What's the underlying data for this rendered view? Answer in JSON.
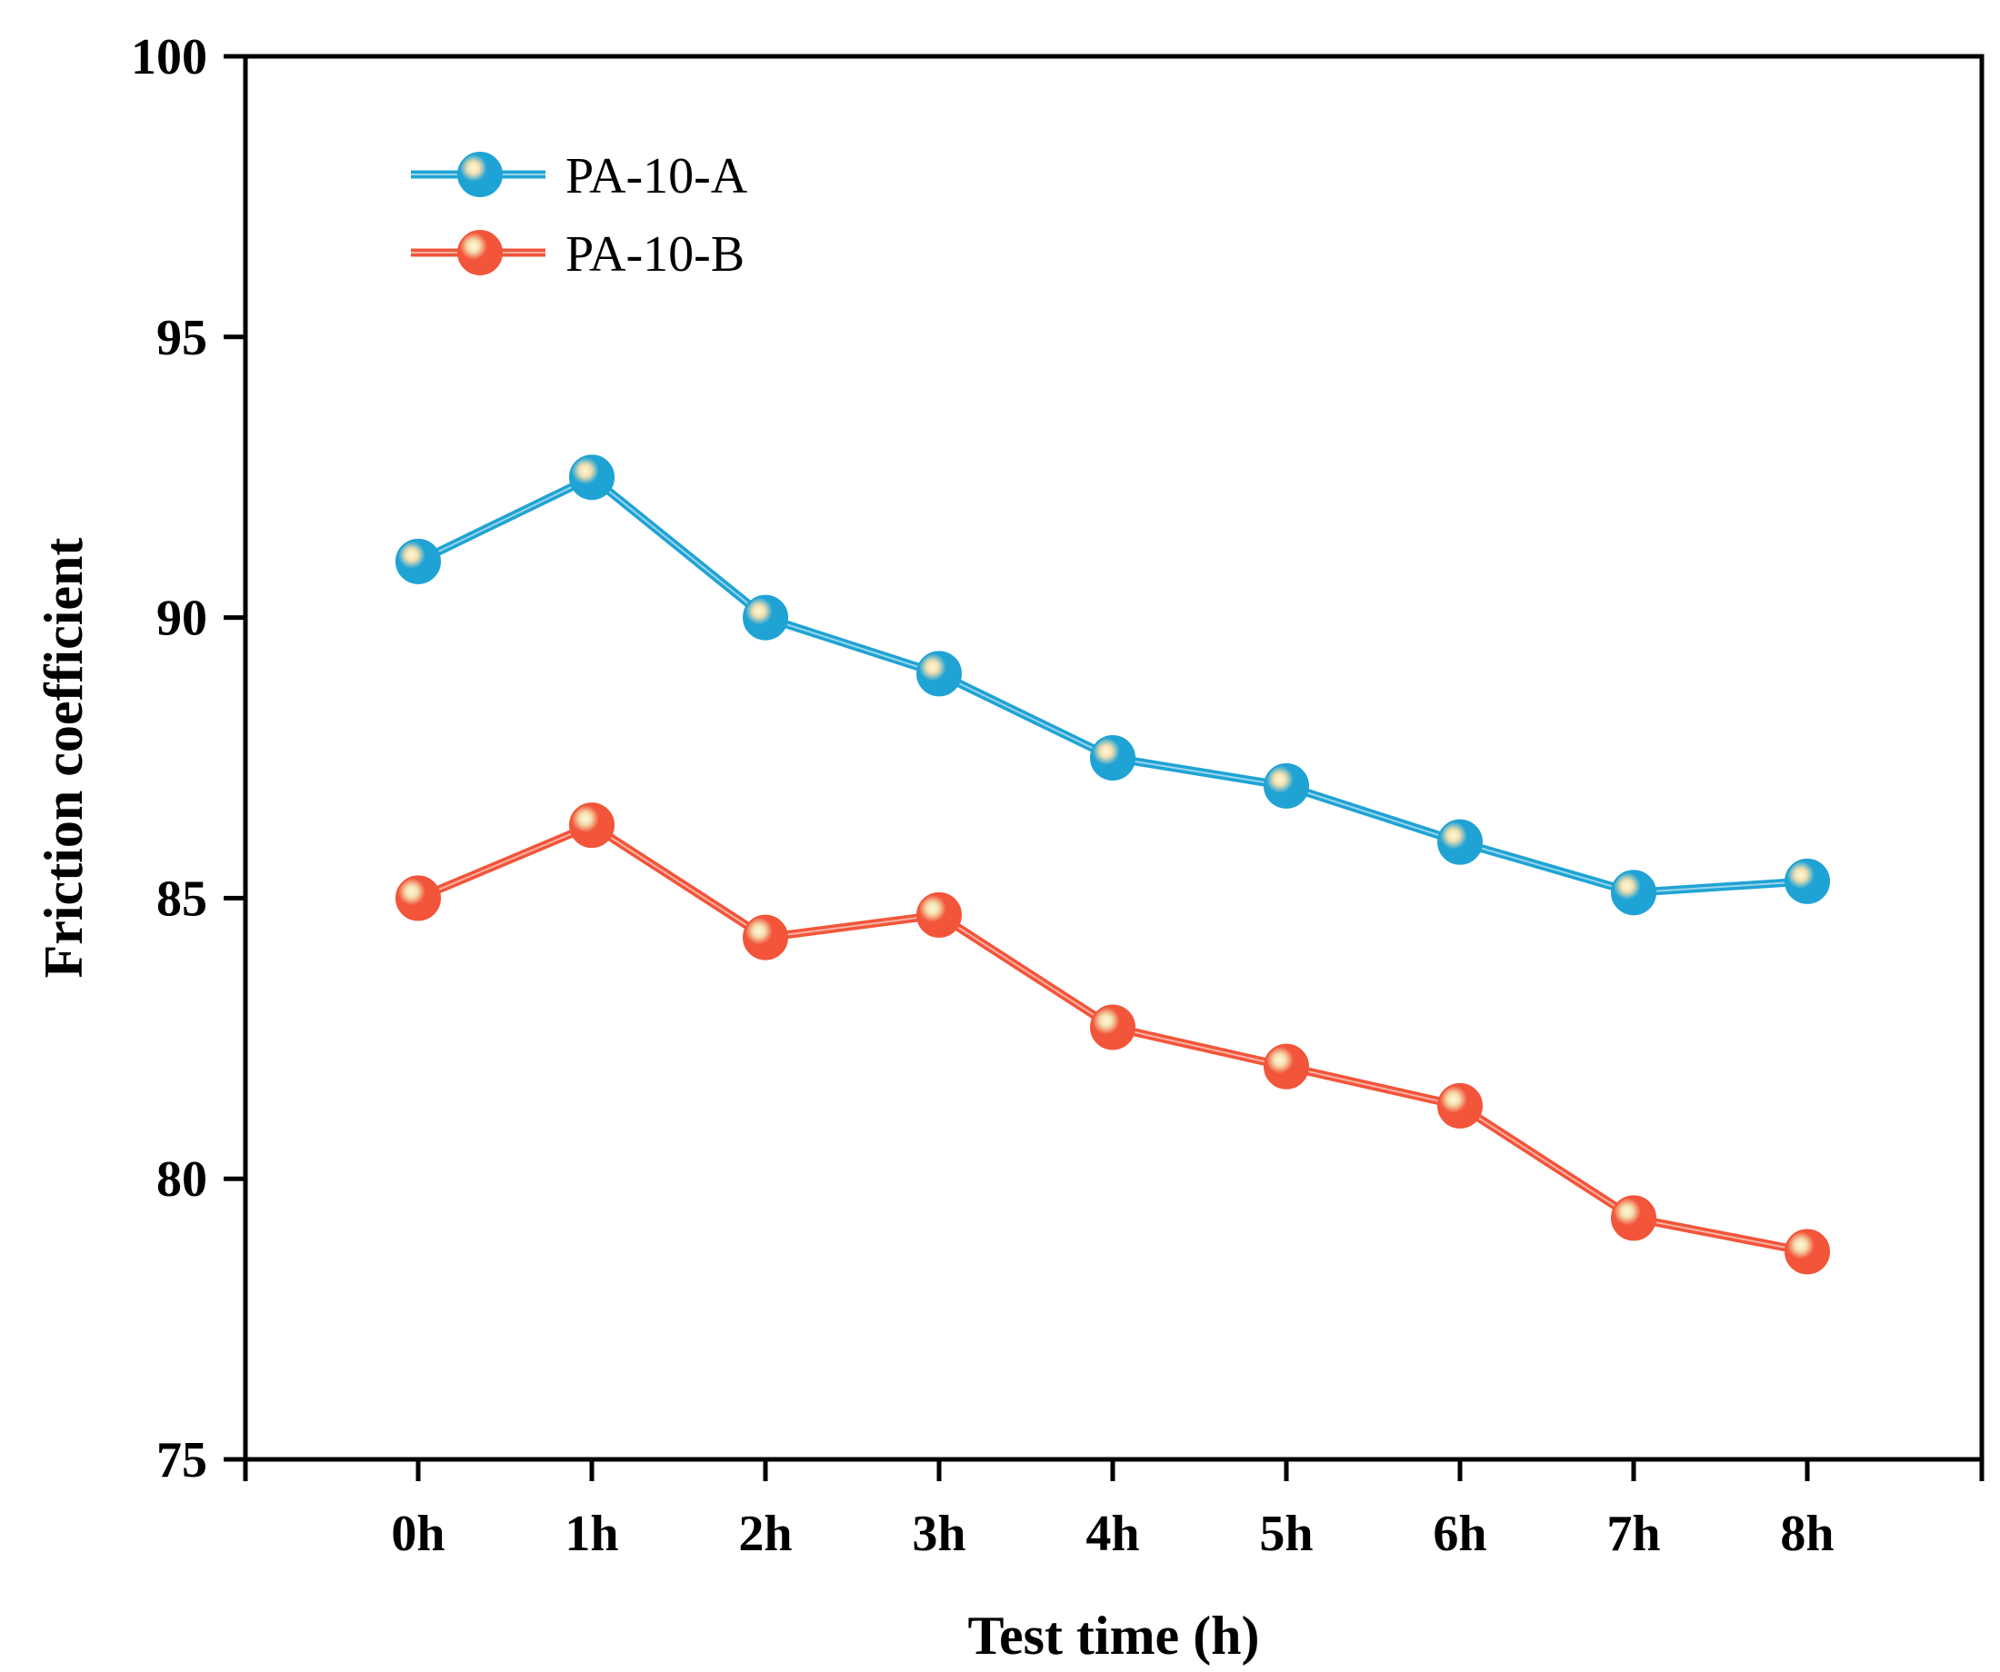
{
  "chart_data": {
    "type": "line",
    "categories": [
      "0h",
      "1h",
      "2h",
      "3h",
      "4h",
      "5h",
      "6h",
      "7h",
      "8h"
    ],
    "series": [
      {
        "name": "PA-10-A",
        "color": "#1fa3d4",
        "values": [
          91.0,
          92.5,
          90.0,
          89.0,
          87.5,
          87.0,
          86.0,
          85.1,
          85.3
        ]
      },
      {
        "name": "PA-10-B",
        "color": "#f2553a",
        "values": [
          85.0,
          86.3,
          84.3,
          84.7,
          82.7,
          82.0,
          81.3,
          79.3,
          78.7
        ]
      }
    ],
    "xlabel": "Test time (h)",
    "ylabel": "Friction coefficient",
    "ylim": [
      75,
      100
    ],
    "yticks": [
      75,
      80,
      85,
      90,
      95,
      100
    ],
    "legend_position": "top-left",
    "grid": false
  }
}
